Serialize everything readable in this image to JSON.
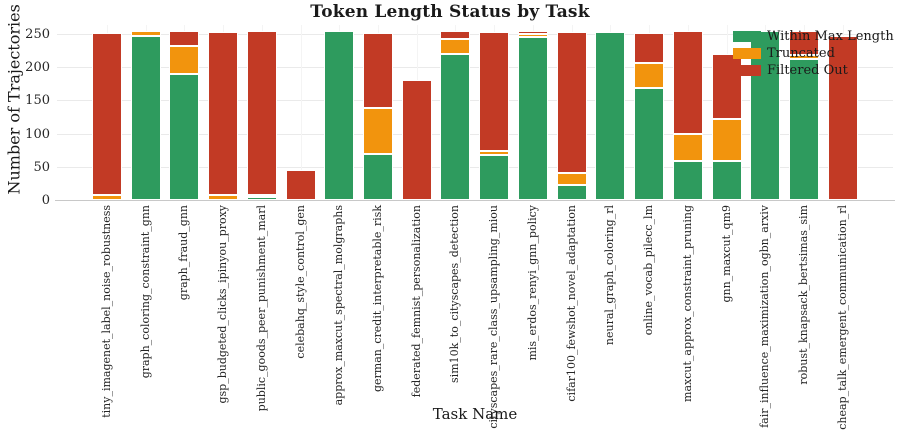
{
  "chart_data": {
    "type": "bar",
    "stacked": true,
    "title": "Token Length Status by Task",
    "xlabel": "Task Name",
    "ylabel": "Number of Trajectories",
    "ylim": [
      0,
      263
    ],
    "yticks": [
      0,
      50,
      100,
      150,
      200,
      250
    ],
    "grid": true,
    "legend_position": "upper right",
    "background": "#ffffff",
    "categories": [
      "tiny_imagenet_label_noise_robustness",
      "graph_coloring_constraint_gnn",
      "graph_fraud_gnn",
      "gsp_budgeted_clicks_ipinyou_proxy",
      "public_goods_peer_punishment_marl",
      "celebahq_style_control_gen",
      "approx_maxcut_spectral_molgraphs",
      "german_credit_interpretable_risk",
      "federated_femnist_personalization",
      "sim10k_to_cityscapes_detection",
      "cityscapes_rare_class_upsampling_miou",
      "mis_erdos_renyi_gnn_policy",
      "cifar100_fewshot_novel_adaptation",
      "neural_graph_coloring_rl",
      "online_vocab_pilecc_lm",
      "maxcut_approx_constraint_pruning",
      "gnn_maxcut_qm9",
      "fair_influence_maximization_ogbn_arxiv",
      "robust_knapsack_bertsimas_sim",
      "cheap_talk_emergent_communication_rl"
    ],
    "series": [
      {
        "name": "Within Max Length",
        "color": "#2E9B5E",
        "values": [
          0,
          247,
          190,
          0,
          4,
          0,
          254,
          70,
          0,
          220,
          68,
          246,
          22,
          253,
          168,
          59,
          59,
          255,
          213,
          0
        ]
      },
      {
        "name": "Truncated",
        "color": "#F2940D",
        "values": [
          8,
          8,
          42,
          7,
          3,
          0,
          0,
          68,
          0,
          22,
          6,
          4,
          19,
          0,
          38,
          40,
          63,
          0,
          5,
          0
        ]
      },
      {
        "name": "Filtered Out",
        "color": "#C23A25",
        "values": [
          243,
          0,
          22,
          246,
          247,
          45,
          0,
          114,
          181,
          12,
          179,
          5,
          212,
          0,
          45,
          155,
          98,
          0,
          36,
          247
        ]
      }
    ]
  }
}
